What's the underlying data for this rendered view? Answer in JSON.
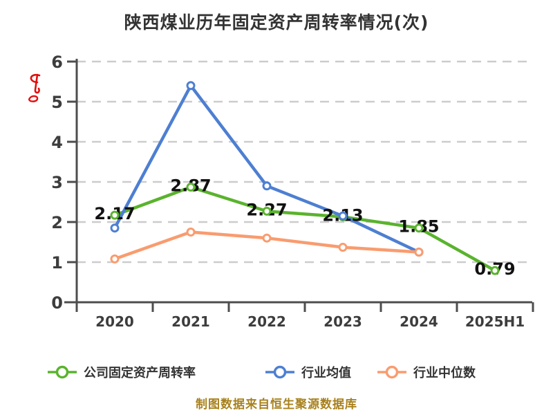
{
  "chart_data": {
    "type": "line",
    "title": "陕西煤业历年固定资产周转率情况(次)",
    "categories": [
      "2020",
      "2021",
      "2022",
      "2023",
      "2024",
      "2025H1"
    ],
    "series": [
      {
        "name": "公司固定资产周转率",
        "color": "#5ab32d",
        "values": [
          2.17,
          2.87,
          2.27,
          2.13,
          1.85,
          0.79
        ],
        "point_labels": [
          "2.17",
          "2.87",
          "2.27",
          "2.13",
          "1.85",
          "0.79"
        ]
      },
      {
        "name": "行业均值",
        "color": "#4d7fd2",
        "values": [
          1.85,
          5.4,
          2.9,
          2.15,
          1.25,
          null
        ]
      },
      {
        "name": "行业中位数",
        "color": "#f99c6f",
        "values": [
          1.08,
          1.75,
          1.6,
          1.37,
          1.25,
          null
        ]
      }
    ],
    "xlabel": "",
    "ylabel": "",
    "ylim": [
      0,
      6
    ],
    "yticks": [
      0,
      1,
      2,
      3,
      4,
      5,
      6
    ],
    "grid": true,
    "grid_style": "dashed",
    "legend_position": "bottom"
  },
  "style": {
    "axis_color": "#4d4d4d",
    "grid_color": "#cccccc",
    "tick_label_color": "#3d3d3d",
    "point_label_color": "#111111",
    "title_color": "#333333"
  },
  "watermark": {
    "color": "#e30e0e"
  },
  "footer": {
    "note": "制图数据来自恒生聚源数据库",
    "color": "#a8811d"
  }
}
